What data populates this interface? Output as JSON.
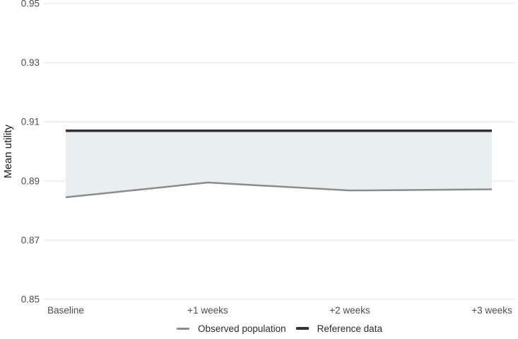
{
  "chart_data": {
    "type": "line",
    "categories": [
      "Baseline",
      "+1 weeks",
      "+2 weeks",
      "+3 weeks"
    ],
    "series": [
      {
        "name": "Observed population",
        "values": [
          0.8845,
          0.8895,
          0.8868,
          0.8872
        ]
      },
      {
        "name": "Reference data",
        "values": [
          0.907,
          0.907,
          0.907,
          0.907
        ]
      }
    ],
    "band": {
      "lower_series": "Observed population",
      "upper_series": "Reference data",
      "fill": "#e9eef1"
    },
    "xlabel": "",
    "ylabel": "Mean utility",
    "ylim": [
      0.85,
      0.95
    ],
    "yticks": [
      "0.95",
      "0.93",
      "0.91",
      "0.89",
      "0.87",
      "0.85"
    ],
    "grid": "horizontal-major-only",
    "legend_position": "bottom-center"
  },
  "legend": {
    "items": [
      {
        "label": "Observed population",
        "color": "#8c8c8c",
        "thickness": 3
      },
      {
        "label": "Reference data",
        "color": "#333333",
        "thickness": 4
      }
    ]
  },
  "colors": {
    "background": "#ffffff",
    "gridline": "#e9e9e9",
    "band_fill": "#e9eef1",
    "observed_line": "#8c8c8c",
    "reference_line": "#333333",
    "tick_text": "#4d4d4d",
    "axis_title_text": "#1a1a1a"
  }
}
